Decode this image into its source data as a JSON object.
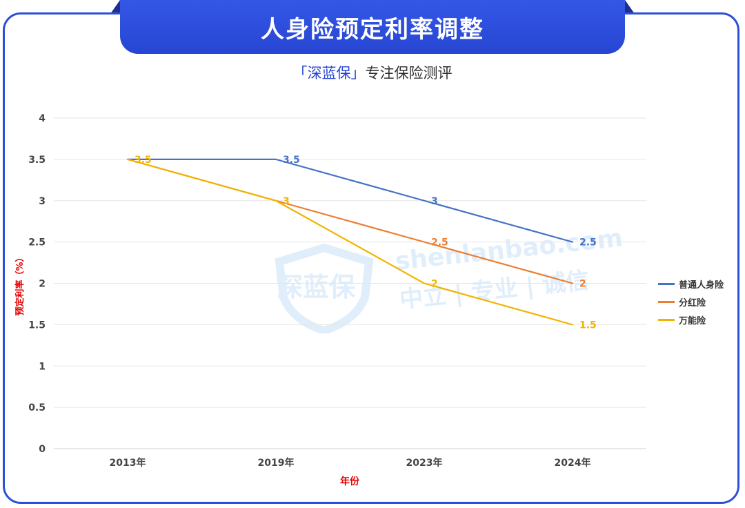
{
  "header": {
    "title": "人身险预定利率调整",
    "subtitle_brand": "「深蓝保」",
    "subtitle_rest": "专注保险测评"
  },
  "watermark": {
    "brand": "深蓝保",
    "url": "shenlanbao.com",
    "slogan": "中立 | 专业 | 诚信"
  },
  "colors": {
    "accent": "#2646d2",
    "axis_label": "#e60000"
  },
  "chart_data": {
    "type": "line",
    "categories": [
      "2013年",
      "2019年",
      "2023年",
      "2024年"
    ],
    "xlabel": "年份",
    "ylabel": "预定利率（%）",
    "ylim": [
      0,
      4
    ],
    "yticks": [
      0,
      0.5,
      1,
      1.5,
      2,
      2.5,
      3,
      3.5,
      4
    ],
    "ytick_labels": [
      "0",
      "0.5",
      "1",
      "1.5",
      "2",
      "2.5",
      "3",
      "3.5",
      "4"
    ],
    "grid": true,
    "legend_position": "right",
    "series": [
      {
        "name": "普通人身险",
        "color": "#4472c4",
        "values": [
          3.5,
          3.5,
          3,
          2.5
        ],
        "labels": [
          "",
          "3.5",
          "3",
          "2.5"
        ]
      },
      {
        "name": "分红险",
        "color": "#ed7d31",
        "values": [
          3.5,
          3,
          2.5,
          2
        ],
        "labels": [
          "",
          "",
          "2.5",
          "2"
        ]
      },
      {
        "name": "万能险",
        "color": "#f0b400",
        "values": [
          3.5,
          3,
          2,
          1.5
        ],
        "labels": [
          "3.5",
          "3",
          "2",
          "1.5"
        ]
      }
    ]
  }
}
